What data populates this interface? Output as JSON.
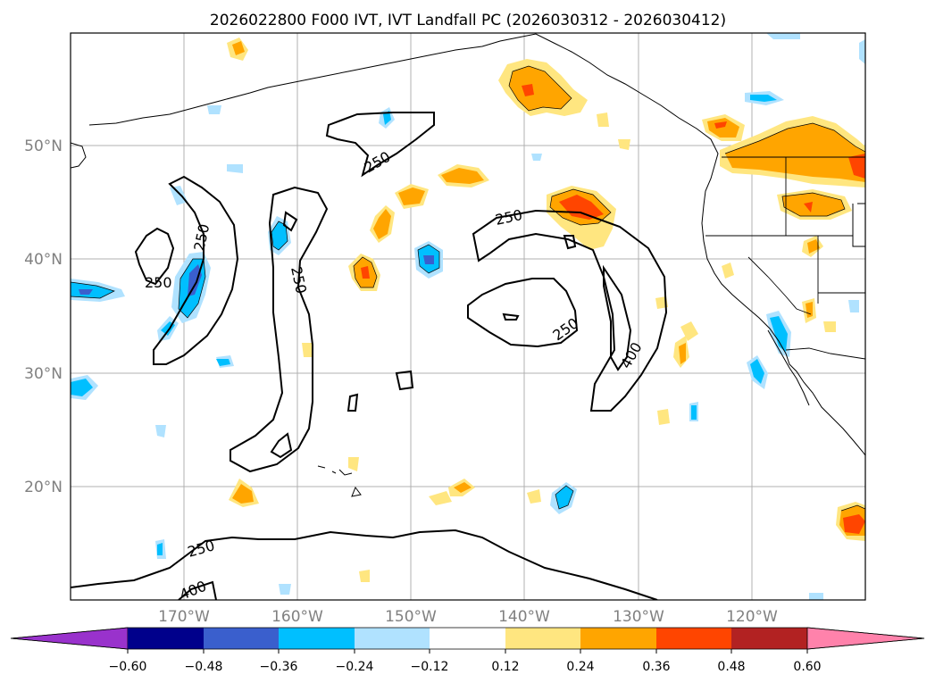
{
  "title": "2026022800 F000 IVT, IVT Landfall PC (2026030312 - 2026030412)",
  "map": {
    "lat_labels": [
      "50°N",
      "40°N",
      "30°N",
      "20°N"
    ],
    "lon_labels": [
      "170°W",
      "160°W",
      "150°W",
      "140°W",
      "130°W",
      "120°W"
    ],
    "extent": {
      "lon_min": -180,
      "lon_max": -110,
      "lat_min": 10,
      "lat_max": 60
    },
    "grid": true
  },
  "colorbar": {
    "ticks": [
      "−0.60",
      "−0.48",
      "−0.36",
      "−0.24",
      "−0.12",
      "0.12",
      "0.24",
      "0.36",
      "0.48",
      "0.60"
    ],
    "colors": [
      "#9932cc",
      "#00008b",
      "#3a5fcd",
      "#00bfff",
      "#b0e2ff",
      "#ffffff",
      "#ffe680",
      "#ffa500",
      "#ff4500",
      "#b22222",
      "#ff82ab"
    ],
    "extend": "both"
  },
  "contour_labels": [
    {
      "id": "c250-w1",
      "text": "250"
    },
    {
      "id": "c250-w2",
      "text": "250"
    },
    {
      "id": "c250-w3",
      "text": "250"
    },
    {
      "id": "c250-mid",
      "text": "250"
    },
    {
      "id": "c250-ne",
      "text": "250"
    },
    {
      "id": "c250-spiral",
      "text": "250"
    },
    {
      "id": "c400-east",
      "text": "400"
    },
    {
      "id": "c250-south",
      "text": "250"
    },
    {
      "id": "c400-south",
      "text": "400"
    }
  ]
}
